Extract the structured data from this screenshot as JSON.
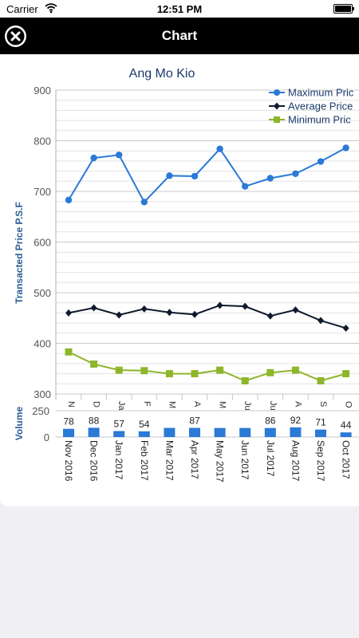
{
  "status_bar": {
    "carrier": "Carrier",
    "time": "12:51 PM"
  },
  "nav": {
    "title": "Chart"
  },
  "chart_data": {
    "type": "line",
    "title": "Ang Mo Kio",
    "ylabel": "Transacted Price P.S.F",
    "ylim": [
      300,
      900
    ],
    "yticks": [
      300,
      400,
      500,
      600,
      700,
      800,
      900
    ],
    "legend_placement": "top-right",
    "categories": [
      "Nov 2016",
      "Dec 2016",
      "Jan 2017",
      "Feb 2017",
      "Mar 2017",
      "Apr 2017",
      "May 2017",
      "Jun 2017",
      "Jul 2017",
      "Aug 2017",
      "Sep 2017",
      "Oct 2017"
    ],
    "top_tick_labels": [
      "N",
      "D",
      "Ja",
      "F",
      "M",
      "A",
      "M",
      "Ju",
      "Ju",
      "A",
      "S",
      "O"
    ],
    "series": [
      {
        "name": "Maximum Price",
        "legend_label": "Maximum Pric",
        "color": "#2a7ad6",
        "marker": "circle",
        "values": [
          683,
          766,
          772,
          679,
          731,
          730,
          784,
          710,
          726,
          735,
          759,
          786
        ]
      },
      {
        "name": "Average Price",
        "legend_label": "Average Price",
        "color": "#0f1a2e",
        "marker": "diamond",
        "values": [
          460,
          470,
          456,
          468,
          461,
          457,
          475,
          473,
          454,
          466,
          445,
          430
        ]
      },
      {
        "name": "Minimum Price",
        "legend_label": "Minimum Pric",
        "color": "#8db62a",
        "marker": "square",
        "values": [
          383,
          359,
          347,
          346,
          340,
          340,
          347,
          326,
          342,
          347,
          326,
          340
        ]
      }
    ],
    "volume": {
      "ylabel": "Volume",
      "ylim": [
        0,
        250
      ],
      "yticks": [
        0,
        250
      ],
      "color": "#2a7ad6",
      "values": [
        78,
        88,
        57,
        54,
        87,
        87,
        86,
        86,
        86,
        92,
        71,
        44
      ],
      "labels": [
        "78",
        "88",
        "57",
        "54",
        "",
        "87",
        "",
        "",
        "86",
        "92",
        "71",
        "44"
      ]
    }
  }
}
